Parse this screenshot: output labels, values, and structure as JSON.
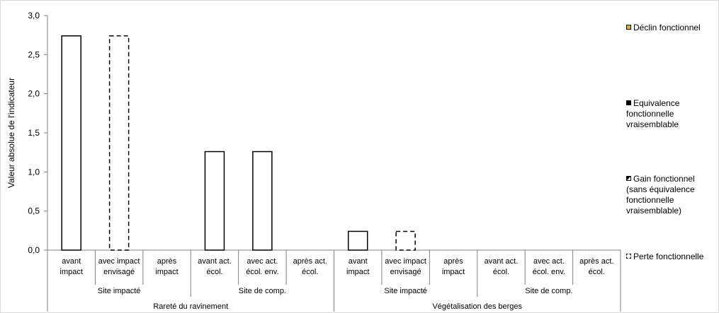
{
  "chart_data": {
    "type": "bar",
    "ylabel": "Valeur absolue de l'indicateur",
    "ylim": [
      0,
      3.0
    ],
    "yticks": [
      "0,0",
      "0,5",
      "1,0",
      "1,5",
      "2,0",
      "2,5",
      "3,0"
    ],
    "grid": false,
    "legend_position": "right",
    "groups": [
      {
        "label": "Rareté du ravinement",
        "subgroups": [
          {
            "label": "Site impacté",
            "categories": [
              {
                "label": [
                  "avant",
                  "impact"
                ],
                "value": 2.74,
                "style": "solid"
              },
              {
                "label": [
                  "avec impact",
                  "envisagé"
                ],
                "value": 2.74,
                "style": "dashed"
              },
              {
                "label": [
                  "après",
                  "impact"
                ],
                "value": 0,
                "style": "none"
              }
            ]
          },
          {
            "label": "Site de comp.",
            "categories": [
              {
                "label": [
                  "avant act.",
                  "écol."
                ],
                "value": 1.26,
                "style": "solid"
              },
              {
                "label": [
                  "avec act.",
                  "écol. env."
                ],
                "value": 1.26,
                "style": "solid"
              },
              {
                "label": [
                  "après act.",
                  "écol."
                ],
                "value": 0,
                "style": "none"
              }
            ]
          }
        ]
      },
      {
        "label": "Végétalisation des berges",
        "subgroups": [
          {
            "label": "Site impacté",
            "categories": [
              {
                "label": [
                  "avant",
                  "impact"
                ],
                "value": 0.24,
                "style": "solid"
              },
              {
                "label": [
                  "avec impact",
                  "envisagé"
                ],
                "value": 0.24,
                "style": "dashed"
              },
              {
                "label": [
                  "après",
                  "impact"
                ],
                "value": 0,
                "style": "none"
              }
            ]
          },
          {
            "label": "Site de comp.",
            "categories": [
              {
                "label": [
                  "avant act.",
                  "écol."
                ],
                "value": 0,
                "style": "none"
              },
              {
                "label": [
                  "avec act.",
                  "écol. env."
                ],
                "value": 0,
                "style": "none"
              },
              {
                "label": [
                  "après act.",
                  "écol."
                ],
                "value": 0,
                "style": "none"
              }
            ]
          }
        ]
      }
    ],
    "legend": [
      {
        "label": "Déclin fonctionnel",
        "color": "#f0b000",
        "swatch": "decline-icon"
      },
      {
        "label": "Equivalence fonctionnelle vraisemblable",
        "color": "#000000",
        "swatch": "equivalence-icon"
      },
      {
        "label": "Gain fonctionnel (sans équivalence fonctionnelle vraisemblable)",
        "color": "#000000",
        "swatch": "gain-icon"
      },
      {
        "label": "Perte fonctionnelle",
        "color": "#000000",
        "swatch": "loss-icon"
      }
    ]
  }
}
